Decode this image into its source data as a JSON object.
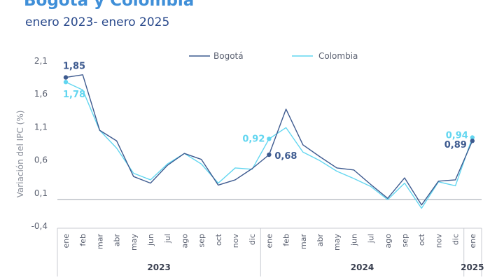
{
  "header": {
    "title": "Bogotá y Colombia",
    "subtitle": "enero 2023- enero 2025"
  },
  "colors": {
    "bogota": "#3d5a8f",
    "colombia": "#62d6f0",
    "axis": "#c8cbd2",
    "zero_line": "#9aa0aa"
  },
  "chart_data": {
    "type": "line",
    "title": "Bogotá y Colombia",
    "subtitle": "enero 2023- enero 2025",
    "ylabel": "Variación del IPC (%)",
    "xlabel": "",
    "ylim": [
      -0.4,
      2.1
    ],
    "yticks": [
      "2,1",
      "1,6",
      "1,1",
      "0,6",
      "0,1",
      "-0,4"
    ],
    "categories": [
      "ene",
      "feb",
      "mar",
      "abr",
      "may",
      "jun",
      "jul",
      "ago",
      "sep",
      "oct",
      "nov",
      "dic",
      "ene",
      "feb",
      "mar",
      "abr",
      "may",
      "jun",
      "jul",
      "ago",
      "sep",
      "oct",
      "nov",
      "dic",
      "ene"
    ],
    "years": [
      {
        "label": "2023",
        "start": 0,
        "end": 11
      },
      {
        "label": "2024",
        "start": 12,
        "end": 23
      },
      {
        "label": "2025",
        "start": 24,
        "end": 24
      }
    ],
    "legend_position": "top",
    "series": [
      {
        "name": "Bogotá",
        "values": [
          1.85,
          1.89,
          1.05,
          0.89,
          0.35,
          0.25,
          0.52,
          0.7,
          0.61,
          0.22,
          0.3,
          0.47,
          0.68,
          1.37,
          0.83,
          0.65,
          0.48,
          0.45,
          0.23,
          0.02,
          0.33,
          -0.08,
          0.28,
          0.3,
          0.89
        ]
      },
      {
        "name": "Colombia",
        "values": [
          1.78,
          1.66,
          1.05,
          0.78,
          0.4,
          0.3,
          0.54,
          0.7,
          0.54,
          0.25,
          0.48,
          0.46,
          0.92,
          1.09,
          0.72,
          0.59,
          0.43,
          0.32,
          0.2,
          0.0,
          0.25,
          -0.13,
          0.27,
          0.21,
          0.94
        ]
      }
    ],
    "data_labels": [
      {
        "series": 0,
        "index": 0,
        "text": "1,85"
      },
      {
        "series": 1,
        "index": 0,
        "text": "1,78"
      },
      {
        "series": 1,
        "index": 12,
        "text": "0,92"
      },
      {
        "series": 0,
        "index": 12,
        "text": "0,68"
      },
      {
        "series": 1,
        "index": 24,
        "text": "0,94"
      },
      {
        "series": 0,
        "index": 24,
        "text": "0,89"
      }
    ]
  }
}
